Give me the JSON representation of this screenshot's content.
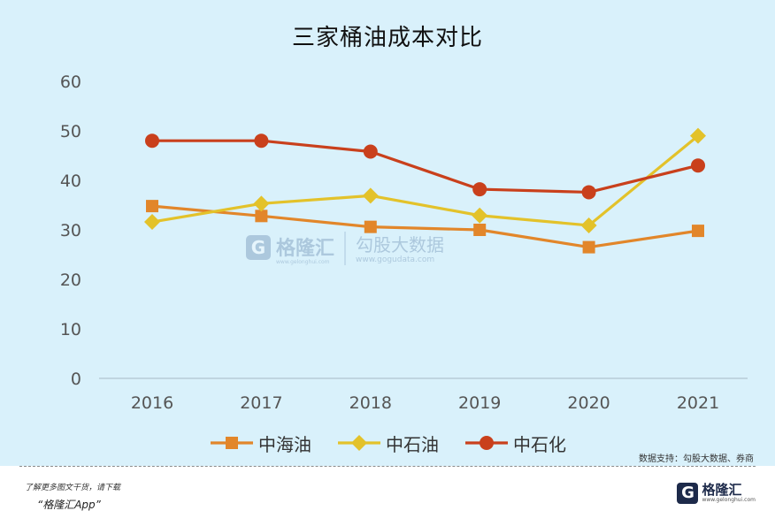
{
  "chart_data": {
    "type": "line",
    "title": "三家桶油成本对比",
    "categories": [
      "2016",
      "2017",
      "2018",
      "2019",
      "2020",
      "2021"
    ],
    "ylim": [
      0,
      60
    ],
    "yticks": [
      "0",
      "10",
      "20",
      "30",
      "40",
      "50",
      "60"
    ],
    "grid": false,
    "legend_position": "bottom",
    "series": [
      {
        "name": "中海油",
        "values": [
          34.8,
          32.8,
          30.6,
          30.0,
          26.5,
          29.8
        ],
        "color": "#e2862a",
        "marker": "square"
      },
      {
        "name": "中石油",
        "values": [
          31.6,
          35.3,
          36.9,
          32.9,
          30.9,
          49.0
        ],
        "color": "#e3c22a",
        "marker": "diamond"
      },
      {
        "name": "中石化",
        "values": [
          48.0,
          48.0,
          45.8,
          38.2,
          37.6,
          43.0
        ],
        "color": "#c9401c",
        "marker": "circle"
      }
    ]
  },
  "watermark": {
    "left": "格隆汇",
    "left_url": "www.gelonghui.com",
    "right": "勾股大数据",
    "right_url": "www.gogudata.com"
  },
  "source": "数据支持：勾股大数据、券商",
  "footer": {
    "line1": "了解更多图文干货，请下载",
    "line2": "“格隆汇App”",
    "logo_mark": "G",
    "logo_text": "格隆汇",
    "logo_url": "www.gelonghui.com"
  }
}
